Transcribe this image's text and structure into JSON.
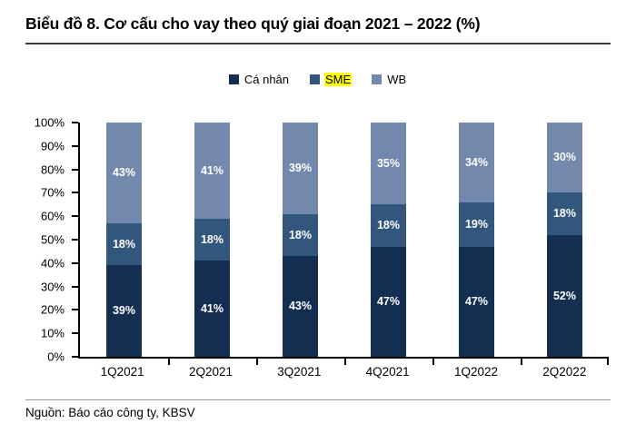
{
  "title": "Biểu đồ 8. Cơ cấu cho vay theo quý giai đoạn 2021 – 2022 (%)",
  "source": "Nguồn: Báo cáo công ty, KBSV",
  "legend": [
    {
      "label": "Cá nhân",
      "color": "#142E52",
      "highlight": false
    },
    {
      "label": "SME",
      "color": "#33567D",
      "highlight": true,
      "highlight_color": "#FFFF00"
    },
    {
      "label": "WB",
      "color": "#7288AC",
      "highlight": false
    }
  ],
  "chart_data": {
    "type": "bar",
    "stacked": true,
    "title": "Biểu đồ 8. Cơ cấu cho vay theo quý giai đoạn 2021 – 2022 (%)",
    "categories": [
      "1Q2021",
      "2Q2021",
      "3Q2021",
      "4Q2021",
      "1Q2022",
      "2Q2022"
    ],
    "series": [
      {
        "name": "Cá nhân",
        "color": "#142E52",
        "values": [
          39,
          41,
          43,
          47,
          47,
          52
        ]
      },
      {
        "name": "SME",
        "color": "#33567D",
        "values": [
          18,
          18,
          18,
          18,
          19,
          18
        ]
      },
      {
        "name": "WB",
        "color": "#7288AC",
        "values": [
          43,
          41,
          39,
          35,
          34,
          30
        ]
      }
    ],
    "y_ticks": [
      "100%",
      "90%",
      "80%",
      "70%",
      "60%",
      "50%",
      "40%",
      "30%",
      "20%",
      "10%",
      "0%"
    ],
    "ylim": [
      0,
      100
    ],
    "value_suffix": "%",
    "grid": false,
    "legend_position": "top",
    "data_labels": "inside-center-white-bold"
  }
}
